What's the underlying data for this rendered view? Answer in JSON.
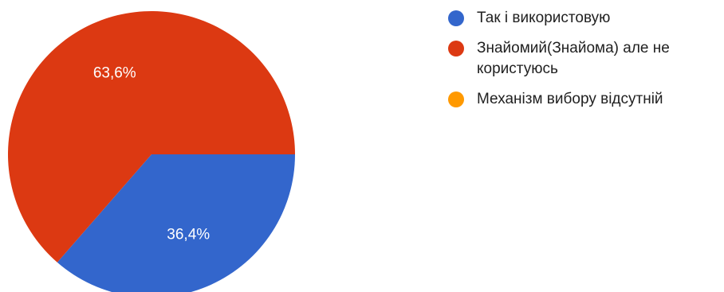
{
  "chart_data": {
    "type": "pie",
    "categories": [
      "Так і використовую",
      "Знайомий(Знайома) але не користуюсь",
      "Механізм вибору відсутній"
    ],
    "values": [
      36.4,
      63.6,
      0
    ],
    "labels": [
      "36,4%",
      "63,6%",
      ""
    ],
    "colors": [
      "#3366cc",
      "#dc3912",
      "#ff9900"
    ],
    "legend_position": "right"
  }
}
